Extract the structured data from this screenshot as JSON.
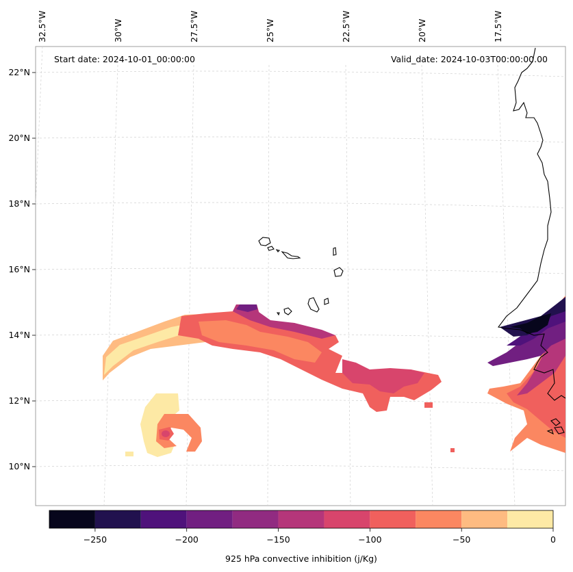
{
  "map": {
    "start_date": "Start date: 2024-10-01_00:00:00",
    "valid_date": "Valid_date: 2024-10-03T00:00:00.00",
    "lon_labels": [
      "32.5°W",
      "30°W",
      "27.5°W",
      "25°W",
      "22.5°W",
      "20°W",
      "17.5°W"
    ],
    "lat_labels": [
      "22°N",
      "20°N",
      "18°N",
      "16°N",
      "14°N",
      "12°N",
      "10°N"
    ]
  },
  "colorbar": {
    "label": "925 hPa convective inhibition (j/Kg)",
    "tick_labels": [
      "−250",
      "−200",
      "−150",
      "−100",
      "−50",
      "0"
    ],
    "levels": [
      -275,
      -250,
      -225,
      -200,
      -175,
      -150,
      -125,
      -100,
      -75,
      -50,
      -25,
      0
    ],
    "colors": [
      "#07061c",
      "#21114e",
      "#4f127b",
      "#711f81",
      "#912b81",
      "#b5367a",
      "#d8456c",
      "#f0605d",
      "#fb8761",
      "#febb81",
      "#fde9a5"
    ]
  },
  "colors": {
    "coastline": "#000000",
    "gridline": "#cccccc",
    "frame": "#888888"
  }
}
